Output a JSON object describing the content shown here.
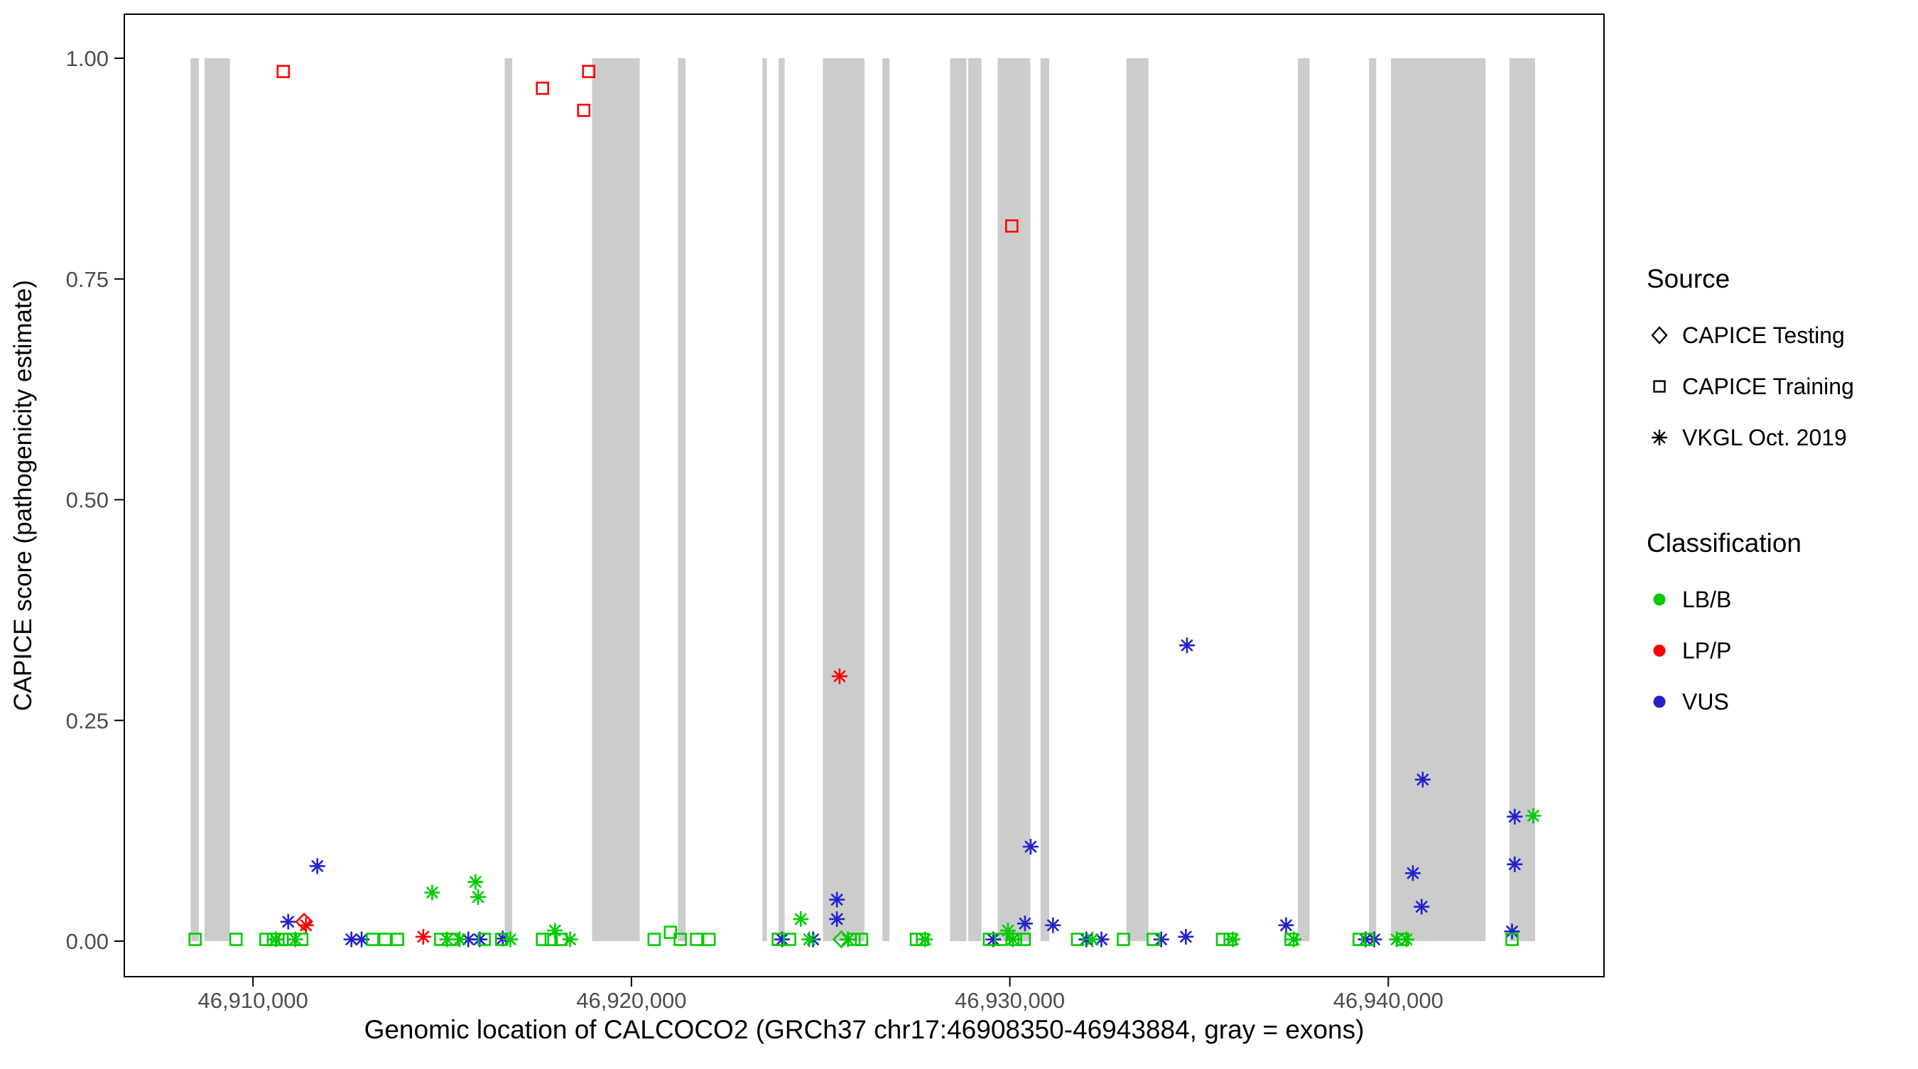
{
  "chart_data": {
    "type": "scatter",
    "title": "",
    "xlabel": "Genomic location of CALCOCO2 (GRCh37 chr17:46908350-46943884, gray = exons)",
    "ylabel": "CAPICE score (pathogenicity estimate)",
    "xlim": [
      46906600,
      46945700
    ],
    "ylim": [
      0,
      1
    ],
    "grid": "off",
    "legend_position": "right",
    "x_ticks": [
      {
        "value": 46910000,
        "label": "46,910,000"
      },
      {
        "value": 46920000,
        "label": "46,920,000"
      },
      {
        "value": 46930000,
        "label": "46,930,000"
      },
      {
        "value": 46940000,
        "label": "46,940,000"
      }
    ],
    "y_ticks": [
      {
        "value": 0.0,
        "label": "0.00"
      },
      {
        "value": 0.25,
        "label": "0.25"
      },
      {
        "value": 0.5,
        "label": "0.50"
      },
      {
        "value": 0.75,
        "label": "0.75"
      },
      {
        "value": 1.0,
        "label": "1.00"
      }
    ],
    "exon_color": "#CCCCCC",
    "panel_border_color": "#000000",
    "tick_label_color": "#4D4D4D",
    "classification_colors": {
      "LB/B": "#00CC00",
      "LP/P": "#FF0000",
      "VUS": "#2222CC"
    },
    "source_shapes": {
      "testing": "diamond",
      "training": "square",
      "vkgl": "asterisk"
    },
    "exons": [
      [
        46908350,
        46908570
      ],
      [
        46908720,
        46909390
      ],
      [
        46916650,
        46916850
      ],
      [
        46918960,
        46920220
      ],
      [
        46921230,
        46921430
      ],
      [
        46923460,
        46923580
      ],
      [
        46923890,
        46924050
      ],
      [
        46925060,
        46926160
      ],
      [
        46926630,
        46926820
      ],
      [
        46928420,
        46928850
      ],
      [
        46928900,
        46929250
      ],
      [
        46929680,
        46930540
      ],
      [
        46930810,
        46931040
      ],
      [
        46933080,
        46933660
      ],
      [
        46937610,
        46937920
      ],
      [
        46939490,
        46939680
      ],
      [
        46940070,
        46942570
      ],
      [
        46943200,
        46943880
      ]
    ],
    "points": [
      [
        46910800,
        0.985,
        "training",
        "LP/P"
      ],
      [
        46917650,
        0.966,
        "training",
        "LP/P"
      ],
      [
        46918870,
        0.985,
        "training",
        "LP/P"
      ],
      [
        46918740,
        0.941,
        "training",
        "LP/P"
      ],
      [
        46930050,
        0.81,
        "training",
        "LP/P"
      ],
      [
        46925500,
        0.3,
        "vkgl",
        "LP/P"
      ],
      [
        46911400,
        0.018,
        "vkgl",
        "LP/P"
      ],
      [
        46914500,
        0.005,
        "vkgl",
        "LP/P"
      ],
      [
        46911350,
        0.022,
        "testing",
        "LP/P"
      ],
      [
        46925550,
        0.002,
        "testing",
        "LB/B"
      ],
      [
        46911700,
        0.085,
        "vkgl",
        "VUS"
      ],
      [
        46910930,
        0.022,
        "vkgl",
        "VUS"
      ],
      [
        46912600,
        0.002,
        "vkgl",
        "VUS"
      ],
      [
        46912870,
        0.002,
        "vkgl",
        "VUS"
      ],
      [
        46915690,
        0.002,
        "vkgl",
        "VUS"
      ],
      [
        46915990,
        0.002,
        "vkgl",
        "VUS"
      ],
      [
        46916600,
        0.003,
        "vkgl",
        "VUS"
      ],
      [
        46923980,
        0.002,
        "vkgl",
        "VUS"
      ],
      [
        46924800,
        0.002,
        "vkgl",
        "VUS"
      ],
      [
        46925430,
        0.047,
        "vkgl",
        "VUS"
      ],
      [
        46925430,
        0.025,
        "vkgl",
        "VUS"
      ],
      [
        46929560,
        0.002,
        "vkgl",
        "VUS"
      ],
      [
        46930400,
        0.02,
        "vkgl",
        "VUS"
      ],
      [
        46930550,
        0.107,
        "vkgl",
        "VUS"
      ],
      [
        46931140,
        0.018,
        "vkgl",
        "VUS"
      ],
      [
        46932020,
        0.002,
        "vkgl",
        "VUS"
      ],
      [
        46932420,
        0.002,
        "vkgl",
        "VUS"
      ],
      [
        46934000,
        0.002,
        "vkgl",
        "VUS"
      ],
      [
        46934650,
        0.005,
        "vkgl",
        "VUS"
      ],
      [
        46934680,
        0.335,
        "vkgl",
        "VUS"
      ],
      [
        46937300,
        0.018,
        "vkgl",
        "VUS"
      ],
      [
        46939400,
        0.002,
        "vkgl",
        "VUS"
      ],
      [
        46939630,
        0.002,
        "vkgl",
        "VUS"
      ],
      [
        46940650,
        0.077,
        "vkgl",
        "VUS"
      ],
      [
        46940880,
        0.039,
        "vkgl",
        "VUS"
      ],
      [
        46940910,
        0.183,
        "vkgl",
        "VUS"
      ],
      [
        46943270,
        0.011,
        "vkgl",
        "VUS"
      ],
      [
        46943340,
        0.087,
        "vkgl",
        "VUS"
      ],
      [
        46943340,
        0.141,
        "vkgl",
        "VUS"
      ],
      [
        46910600,
        0.002,
        "vkgl",
        "LB/B"
      ],
      [
        46911120,
        0.002,
        "vkgl",
        "LB/B"
      ],
      [
        46914735,
        0.055,
        "vkgl",
        "LB/B"
      ],
      [
        46915880,
        0.067,
        "vkgl",
        "LB/B"
      ],
      [
        46915950,
        0.05,
        "vkgl",
        "LB/B"
      ],
      [
        46915130,
        0.002,
        "vkgl",
        "LB/B"
      ],
      [
        46915460,
        0.002,
        "vkgl",
        "LB/B"
      ],
      [
        46916800,
        0.002,
        "vkgl",
        "LB/B"
      ],
      [
        46917980,
        0.012,
        "vkgl",
        "LB/B"
      ],
      [
        46918380,
        0.002,
        "vkgl",
        "LB/B"
      ],
      [
        46924475,
        0.025,
        "vkgl",
        "LB/B"
      ],
      [
        46924700,
        0.002,
        "vkgl",
        "LB/B"
      ],
      [
        46925720,
        0.002,
        "vkgl",
        "LB/B"
      ],
      [
        46927760,
        0.002,
        "vkgl",
        "LB/B"
      ],
      [
        46929950,
        0.012,
        "vkgl",
        "LB/B"
      ],
      [
        46930080,
        0.002,
        "vkgl",
        "LB/B"
      ],
      [
        46932180,
        0.002,
        "vkgl",
        "LB/B"
      ],
      [
        46935890,
        0.002,
        "vkgl",
        "LB/B"
      ],
      [
        46937500,
        0.002,
        "vkgl",
        "LB/B"
      ],
      [
        46940220,
        0.002,
        "vkgl",
        "LB/B"
      ],
      [
        46940480,
        0.002,
        "vkgl",
        "LB/B"
      ],
      [
        46943830,
        0.142,
        "vkgl",
        "LB/B"
      ],
      [
        46908470,
        0.002,
        "training",
        "LB/B"
      ],
      [
        46909550,
        0.002,
        "training",
        "LB/B"
      ],
      [
        46910340,
        0.002,
        "training",
        "LB/B"
      ],
      [
        46910540,
        0.002,
        "training",
        "LB/B"
      ],
      [
        46910770,
        0.002,
        "training",
        "LB/B"
      ],
      [
        46910960,
        0.002,
        "training",
        "LB/B"
      ],
      [
        46911290,
        0.002,
        "training",
        "LB/B"
      ],
      [
        46913160,
        0.002,
        "training",
        "LB/B"
      ],
      [
        46913490,
        0.002,
        "training",
        "LB/B"
      ],
      [
        46913820,
        0.002,
        "training",
        "LB/B"
      ],
      [
        46914960,
        0.002,
        "training",
        "LB/B"
      ],
      [
        46915260,
        0.002,
        "training",
        "LB/B"
      ],
      [
        46916110,
        0.002,
        "training",
        "LB/B"
      ],
      [
        46916570,
        0.002,
        "training",
        "LB/B"
      ],
      [
        46917650,
        0.002,
        "training",
        "LB/B"
      ],
      [
        46917880,
        0.002,
        "training",
        "LB/B"
      ],
      [
        46918140,
        0.002,
        "training",
        "LB/B"
      ],
      [
        46920600,
        0.002,
        "training",
        "LB/B"
      ],
      [
        46921030,
        0.01,
        "training",
        "LB/B"
      ],
      [
        46921290,
        0.002,
        "training",
        "LB/B"
      ],
      [
        46921720,
        0.002,
        "training",
        "LB/B"
      ],
      [
        46922050,
        0.002,
        "training",
        "LB/B"
      ],
      [
        46923880,
        0.002,
        "training",
        "LB/B"
      ],
      [
        46924180,
        0.002,
        "training",
        "LB/B"
      ],
      [
        46925880,
        0.002,
        "training",
        "LB/B"
      ],
      [
        46926080,
        0.002,
        "training",
        "LB/B"
      ],
      [
        46927530,
        0.002,
        "training",
        "LB/B"
      ],
      [
        46927690,
        0.002,
        "training",
        "LB/B"
      ],
      [
        46929460,
        0.002,
        "training",
        "LB/B"
      ],
      [
        46929760,
        0.002,
        "training",
        "LB/B"
      ],
      [
        46930150,
        0.002,
        "training",
        "LB/B"
      ],
      [
        46930380,
        0.002,
        "training",
        "LB/B"
      ],
      [
        46931790,
        0.002,
        "training",
        "LB/B"
      ],
      [
        46933000,
        0.002,
        "training",
        "LB/B"
      ],
      [
        46933790,
        0.002,
        "training",
        "LB/B"
      ],
      [
        46935620,
        0.002,
        "training",
        "LB/B"
      ],
      [
        46935820,
        0.002,
        "training",
        "LB/B"
      ],
      [
        46937430,
        0.002,
        "training",
        "LB/B"
      ],
      [
        46939230,
        0.002,
        "training",
        "LB/B"
      ],
      [
        46939460,
        0.002,
        "training",
        "LB/B"
      ],
      [
        46940380,
        0.002,
        "training",
        "LB/B"
      ],
      [
        46943270,
        0.002,
        "training",
        "LB/B"
      ]
    ]
  },
  "legend": {
    "source": {
      "title": "Source",
      "items": [
        {
          "label": "CAPICE Testing",
          "shape": "diamond"
        },
        {
          "label": "CAPICE Training",
          "shape": "square"
        },
        {
          "label": "VKGL Oct. 2019",
          "shape": "asterisk"
        }
      ]
    },
    "classification": {
      "title": "Classification",
      "items": [
        {
          "label": "LB/B",
          "color": "#00CC00"
        },
        {
          "label": "LP/P",
          "color": "#FF0000"
        },
        {
          "label": "VUS",
          "color": "#2222CC"
        }
      ]
    }
  }
}
